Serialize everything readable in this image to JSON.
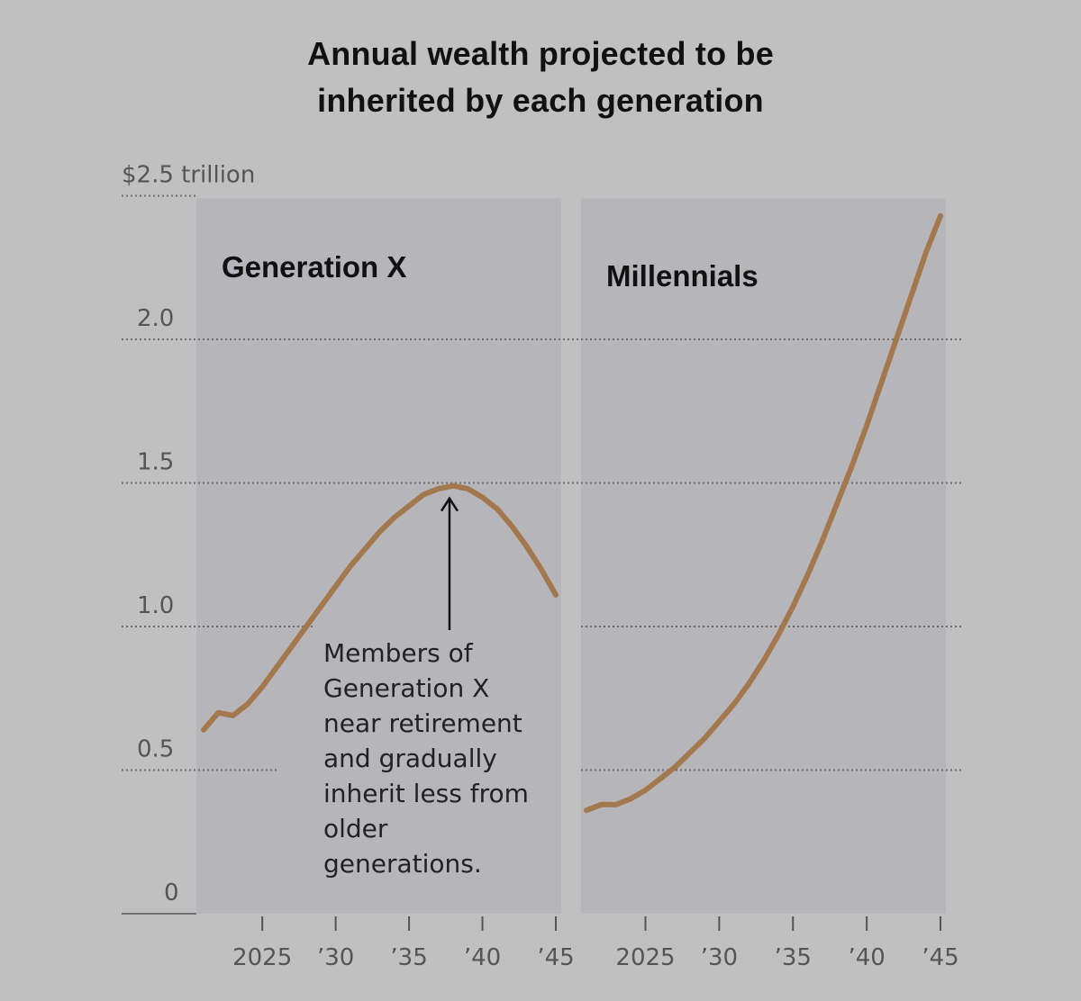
{
  "title": {
    "line1": "Annual wealth projected to be",
    "line2": "inherited by each generation"
  },
  "colors": {
    "background": "#c0c0c0",
    "panel": "#b6b6ba",
    "line": "#a4784e",
    "grid": "#6e6e6e"
  },
  "chart_data": {
    "type": "line",
    "title": "Annual wealth projected to be inherited by each generation",
    "ylabel": "$ trillion",
    "ylim": [
      0,
      2.5
    ],
    "y_ticks": [
      {
        "value": 0,
        "label": "0"
      },
      {
        "value": 0.5,
        "label": "0.5"
      },
      {
        "value": 1.0,
        "label": "1.0"
      },
      {
        "value": 1.5,
        "label": "1.5"
      },
      {
        "value": 2.0,
        "label": "2.0"
      },
      {
        "value": 2.5,
        "label": "$2.5 trillion"
      }
    ],
    "xlim": [
      2021,
      2045
    ],
    "x_ticks": [
      {
        "value": 2025,
        "label": "2025"
      },
      {
        "value": 2030,
        "label": "’30"
      },
      {
        "value": 2035,
        "label": "’35"
      },
      {
        "value": 2040,
        "label": "’40"
      },
      {
        "value": 2045,
        "label": "’45"
      }
    ],
    "panels": [
      {
        "name": "Generation X",
        "x": [
          2021,
          2022,
          2023,
          2024,
          2025,
          2026,
          2027,
          2028,
          2029,
          2030,
          2031,
          2032,
          2033,
          2034,
          2035,
          2036,
          2037,
          2038,
          2039,
          2040,
          2041,
          2042,
          2043,
          2044,
          2045
        ],
        "values": [
          0.64,
          0.7,
          0.69,
          0.73,
          0.79,
          0.86,
          0.93,
          1.0,
          1.07,
          1.14,
          1.21,
          1.27,
          1.33,
          1.38,
          1.42,
          1.46,
          1.48,
          1.49,
          1.48,
          1.45,
          1.41,
          1.35,
          1.28,
          1.2,
          1.11
        ],
        "annotation": {
          "x": 2038,
          "y": 1.49,
          "lines": [
            "Members of",
            "Generation X",
            "near retirement",
            "and gradually",
            "inherit less from",
            "older",
            "generations."
          ]
        }
      },
      {
        "name": "Millennials",
        "x": [
          2021,
          2022,
          2023,
          2024,
          2025,
          2026,
          2027,
          2028,
          2029,
          2030,
          2031,
          2032,
          2033,
          2034,
          2035,
          2036,
          2037,
          2038,
          2039,
          2040,
          2041,
          2042,
          2043,
          2044,
          2045
        ],
        "values": [
          0.36,
          0.38,
          0.38,
          0.4,
          0.43,
          0.47,
          0.51,
          0.56,
          0.61,
          0.67,
          0.73,
          0.8,
          0.88,
          0.97,
          1.07,
          1.18,
          1.3,
          1.43,
          1.56,
          1.7,
          1.85,
          2.0,
          2.15,
          2.3,
          2.43
        ]
      }
    ]
  }
}
